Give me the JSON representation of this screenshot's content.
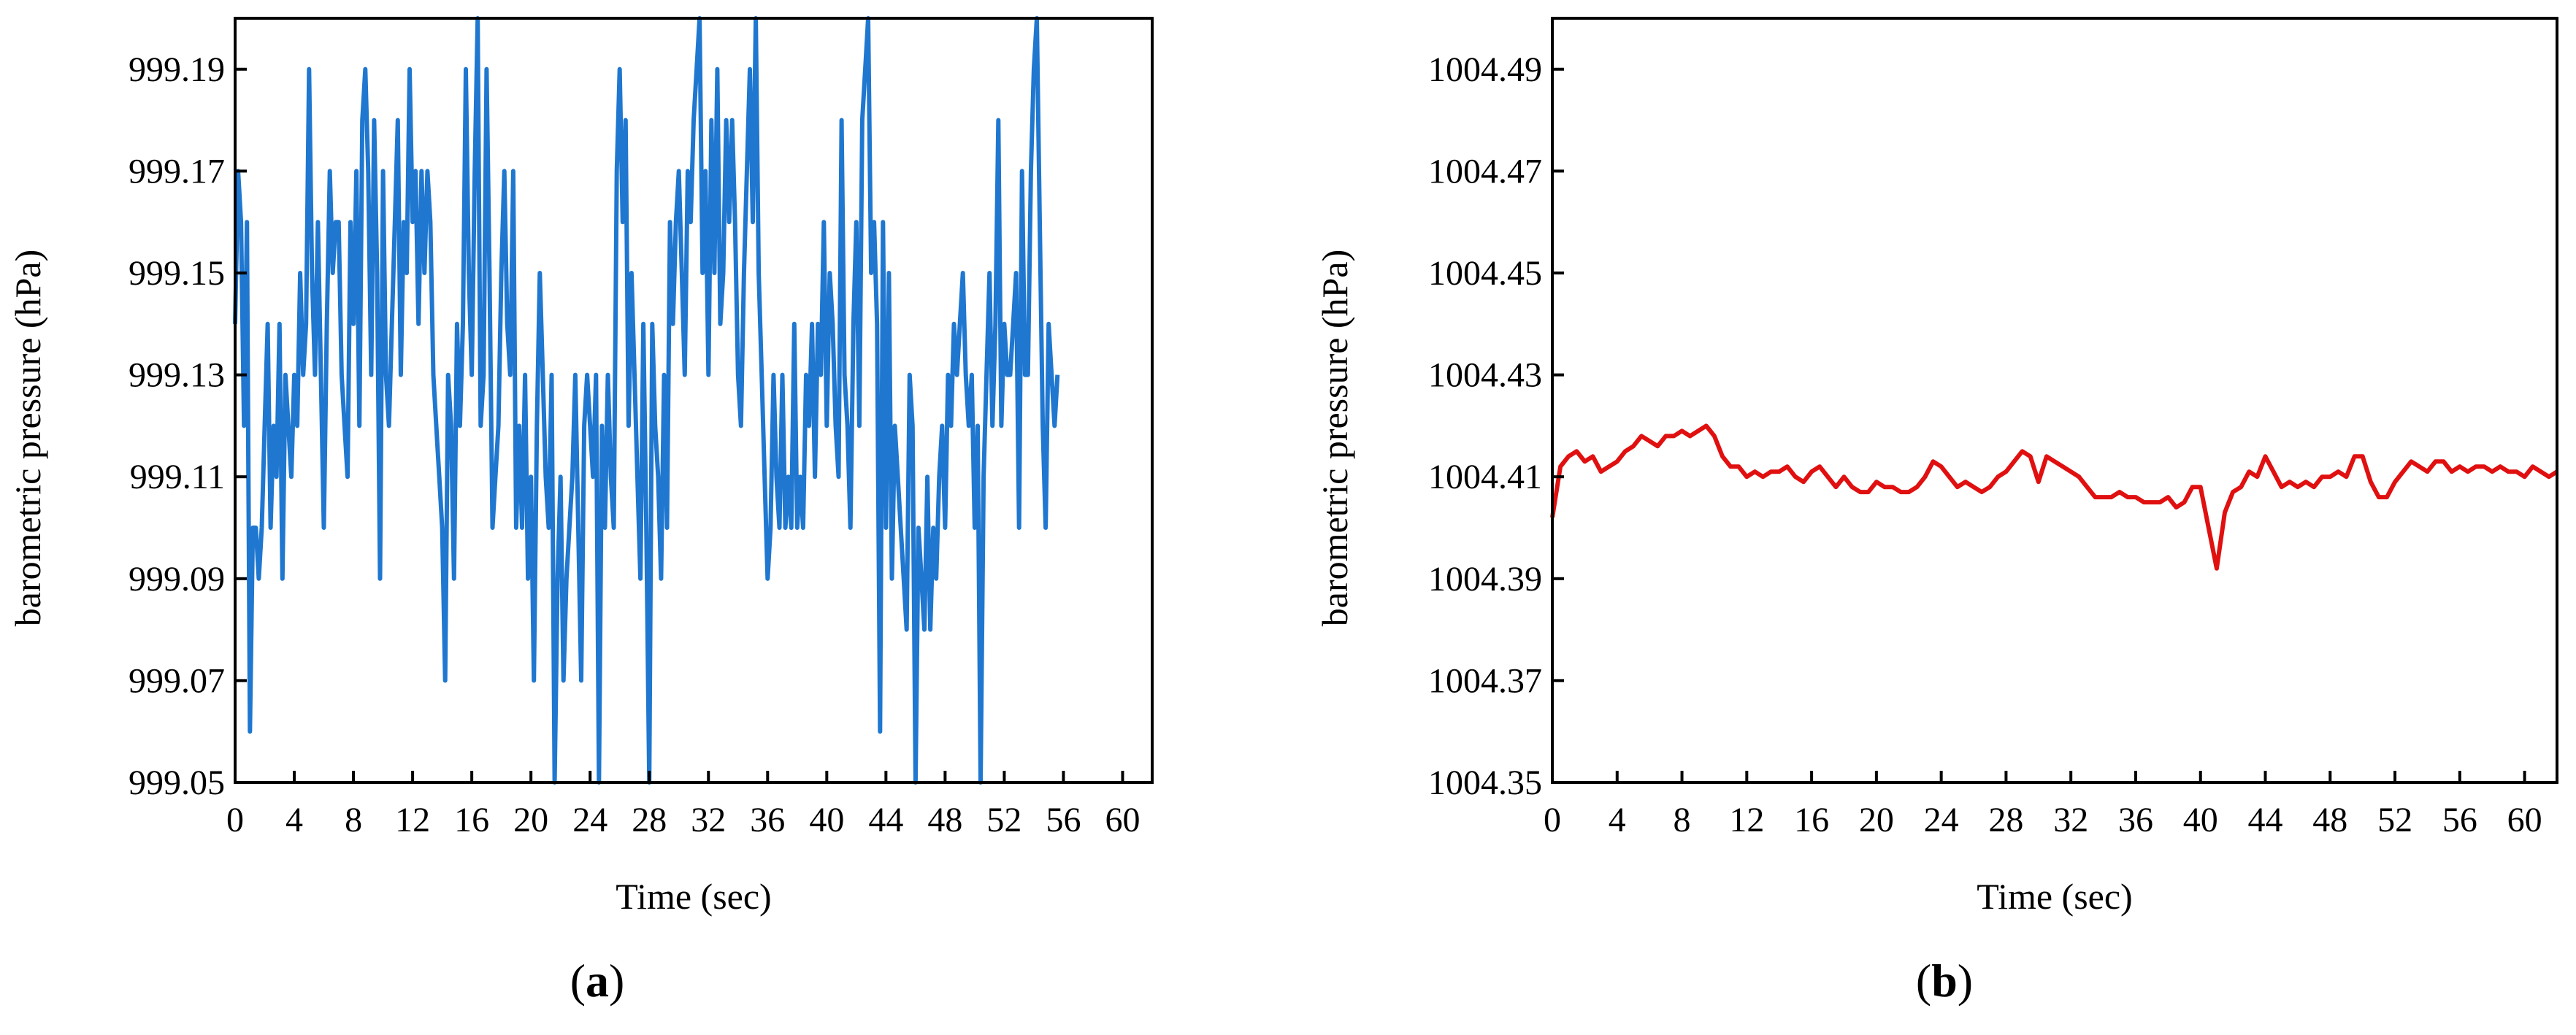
{
  "colors": {
    "series_a": "#1f77d0",
    "series_b": "#e01010",
    "axis": "#000000"
  },
  "panels": [
    {
      "label": "a"
    },
    {
      "label": "b"
    }
  ],
  "chart_data": [
    {
      "type": "line",
      "xlabel": "Time (sec)",
      "ylabel": "barometric pressure (hPa)",
      "xlim": [
        0,
        62
      ],
      "ylim": [
        999.05,
        999.2
      ],
      "xticks": [
        "0",
        "4",
        "8",
        "12",
        "16",
        "20",
        "24",
        "28",
        "32",
        "36",
        "40",
        "44",
        "48",
        "52",
        "56",
        "60"
      ],
      "yticks": [
        "999.05",
        "999.07",
        "999.09",
        "999.11",
        "999.13",
        "999.15",
        "999.17",
        "999.19"
      ],
      "grid": false,
      "series": [
        {
          "color": "#1f77d0",
          "step": 0.2,
          "y": [
            999.14,
            999.17,
            999.16,
            999.12,
            999.16,
            999.06,
            999.1,
            999.1,
            999.09,
            999.1,
            999.12,
            999.14,
            999.1,
            999.12,
            999.11,
            999.14,
            999.09,
            999.13,
            999.12,
            999.11,
            999.13,
            999.12,
            999.15,
            999.13,
            999.14,
            999.19,
            999.15,
            999.13,
            999.16,
            999.13,
            999.1,
            999.14,
            999.17,
            999.15,
            999.16,
            999.16,
            999.13,
            999.12,
            999.11,
            999.16,
            999.14,
            999.17,
            999.12,
            999.18,
            999.19,
            999.17,
            999.13,
            999.18,
            999.15,
            999.09,
            999.17,
            999.13,
            999.12,
            999.14,
            999.16,
            999.18,
            999.13,
            999.16,
            999.15,
            999.19,
            999.16,
            999.17,
            999.14,
            999.17,
            999.15,
            999.17,
            999.16,
            999.13,
            999.12,
            999.11,
            999.1,
            999.07,
            999.13,
            999.12,
            999.09,
            999.14,
            999.12,
            999.14,
            999.19,
            999.15,
            999.13,
            999.17,
            999.2,
            999.12,
            999.13,
            999.19,
            999.15,
            999.1,
            999.11,
            999.12,
            999.15,
            999.17,
            999.14,
            999.13,
            999.17,
            999.1,
            999.12,
            999.1,
            999.13,
            999.09,
            999.11,
            999.07,
            999.12,
            999.15,
            999.13,
            999.11,
            999.1,
            999.13,
            999.05,
            999.09,
            999.11,
            999.07,
            999.09,
            999.1,
            999.11,
            999.13,
            999.1,
            999.07,
            999.12,
            999.13,
            999.12,
            999.11,
            999.13,
            999.05,
            999.12,
            999.1,
            999.13,
            999.11,
            999.1,
            999.17,
            999.19,
            999.16,
            999.18,
            999.12,
            999.15,
            999.13,
            999.11,
            999.09,
            999.14,
            999.1,
            999.05,
            999.14,
            999.12,
            999.11,
            999.09,
            999.13,
            999.1,
            999.16,
            999.14,
            999.16,
            999.17,
            999.15,
            999.13,
            999.17,
            999.16,
            999.18,
            999.19,
            999.2,
            999.15,
            999.17,
            999.13,
            999.18,
            999.15,
            999.19,
            999.14,
            999.15,
            999.18,
            999.16,
            999.18,
            999.16,
            999.13,
            999.12,
            999.15,
            999.17,
            999.19,
            999.16,
            999.2,
            999.15,
            999.13,
            999.11,
            999.09,
            999.1,
            999.13,
            999.11,
            999.1,
            999.13,
            999.1,
            999.11,
            999.1,
            999.14,
            999.1,
            999.11,
            999.1,
            999.13,
            999.12,
            999.14,
            999.11,
            999.14,
            999.13,
            999.16,
            999.12,
            999.15,
            999.14,
            999.12,
            999.11,
            999.18,
            999.13,
            999.12,
            999.1,
            999.14,
            999.16,
            999.12,
            999.18,
            999.19,
            999.2,
            999.15,
            999.16,
            999.14,
            999.06,
            999.16,
            999.1,
            999.15,
            999.09,
            999.12,
            999.11,
            999.1,
            999.09,
            999.08,
            999.13,
            999.12,
            999.05,
            999.1,
            999.09,
            999.08,
            999.11,
            999.08,
            999.1,
            999.09,
            999.11,
            999.12,
            999.1,
            999.13,
            999.12,
            999.14,
            999.13,
            999.14,
            999.15,
            999.13,
            999.12,
            999.13,
            999.1,
            999.12,
            999.05,
            999.11,
            999.13,
            999.15,
            999.12,
            999.14,
            999.18,
            999.12,
            999.14,
            999.13,
            999.13,
            999.14,
            999.15,
            999.1,
            999.17,
            999.13,
            999.13,
            999.17,
            999.19,
            999.2,
            999.16,
            999.12,
            999.1,
            999.14,
            999.13,
            999.12,
            999.13
          ]
        }
      ]
    },
    {
      "type": "line",
      "xlabel": "Time (sec)",
      "ylabel": "barometric pressure (hPa)",
      "xlim": [
        0,
        62
      ],
      "ylim": [
        1004.35,
        1004.5
      ],
      "xticks": [
        "0",
        "4",
        "8",
        "12",
        "16",
        "20",
        "24",
        "28",
        "32",
        "36",
        "40",
        "44",
        "48",
        "52",
        "56",
        "60"
      ],
      "yticks": [
        "1004.35",
        "1004.37",
        "1004.39",
        "1004.41",
        "1004.43",
        "1004.45",
        "1004.47",
        "1004.49"
      ],
      "grid": false,
      "series": [
        {
          "color": "#e01010",
          "x": [
            0,
            0.5,
            1,
            1.5,
            2,
            2.5,
            3,
            3.5,
            4,
            4.5,
            5,
            5.5,
            6,
            6.5,
            7,
            7.5,
            8,
            8.5,
            9,
            9.5,
            10,
            10.5,
            11,
            11.5,
            12,
            12.5,
            13,
            13.5,
            14,
            14.5,
            15,
            15.5,
            16,
            16.5,
            17,
            17.5,
            18,
            18.5,
            19,
            19.5,
            20,
            20.5,
            21,
            21.5,
            22,
            22.5,
            23,
            23.5,
            24,
            24.5,
            25,
            25.5,
            26,
            26.5,
            27,
            27.5,
            28,
            28.5,
            29,
            29.5,
            30,
            30.5,
            31,
            31.5,
            32,
            32.5,
            33,
            33.5,
            34,
            34.5,
            35,
            35.5,
            36,
            36.5,
            37,
            37.5,
            38,
            38.5,
            39,
            39.5,
            40,
            40.5,
            41,
            41.5,
            42,
            42.5,
            43,
            43.5,
            44,
            44.5,
            45,
            45.5,
            46,
            46.5,
            47,
            47.5,
            48,
            48.5,
            49,
            49.5,
            50,
            50.5,
            51,
            51.5,
            52,
            52.5,
            53,
            53.5,
            54,
            54.5,
            55,
            55.5,
            56,
            56.5,
            57,
            57.5,
            58,
            58.5,
            59,
            59.5,
            60,
            60.5,
            61,
            61.5,
            62
          ],
          "y": [
            1004.402,
            1004.412,
            1004.414,
            1004.415,
            1004.413,
            1004.414,
            1004.411,
            1004.412,
            1004.413,
            1004.415,
            1004.416,
            1004.418,
            1004.417,
            1004.416,
            1004.418,
            1004.418,
            1004.419,
            1004.418,
            1004.419,
            1004.42,
            1004.418,
            1004.414,
            1004.412,
            1004.412,
            1004.41,
            1004.411,
            1004.41,
            1004.411,
            1004.411,
            1004.412,
            1004.41,
            1004.409,
            1004.411,
            1004.412,
            1004.41,
            1004.408,
            1004.41,
            1004.408,
            1004.407,
            1004.407,
            1004.409,
            1004.408,
            1004.408,
            1004.407,
            1004.407,
            1004.408,
            1004.41,
            1004.413,
            1004.412,
            1004.41,
            1004.408,
            1004.409,
            1004.408,
            1004.407,
            1004.408,
            1004.41,
            1004.411,
            1004.413,
            1004.415,
            1004.414,
            1004.409,
            1004.414,
            1004.413,
            1004.412,
            1004.411,
            1004.41,
            1004.408,
            1004.406,
            1004.406,
            1004.406,
            1004.407,
            1004.406,
            1004.406,
            1004.405,
            1004.405,
            1004.405,
            1004.406,
            1004.404,
            1004.405,
            1004.408,
            1004.408,
            1004.4,
            1004.392,
            1004.403,
            1004.407,
            1004.408,
            1004.411,
            1004.41,
            1004.414,
            1004.411,
            1004.408,
            1004.409,
            1004.408,
            1004.409,
            1004.408,
            1004.41,
            1004.41,
            1004.411,
            1004.41,
            1004.414,
            1004.414,
            1004.409,
            1004.406,
            1004.406,
            1004.409,
            1004.411,
            1004.413,
            1004.412,
            1004.411,
            1004.413,
            1004.413,
            1004.411,
            1004.412,
            1004.411,
            1004.412,
            1004.412,
            1004.411,
            1004.412,
            1004.411,
            1004.411,
            1004.41,
            1004.412,
            1004.411,
            1004.41,
            1004.411
          ]
        }
      ]
    }
  ]
}
